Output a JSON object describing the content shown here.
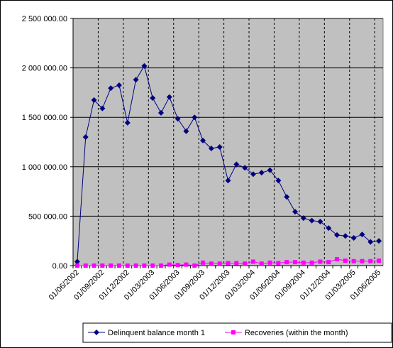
{
  "chart_data": {
    "type": "line",
    "categories": [
      "01/06/2002",
      null,
      null,
      "01/09/2002",
      null,
      null,
      "01/12/2002",
      null,
      null,
      "01/03/2003",
      null,
      null,
      "01/06/2003",
      null,
      null,
      "01/09/2003",
      null,
      null,
      "01/12/2003",
      null,
      null,
      "01/03/2004",
      null,
      null,
      "01/06/2004",
      null,
      null,
      "01/09/2004",
      null,
      null,
      "01/12/2004",
      null,
      null,
      "01/03/2005",
      null,
      null,
      "01/06/2005"
    ],
    "series": [
      {
        "name": "Delinquent balance month 1",
        "color": "#000080",
        "marker": "diamond",
        "values": [
          40000,
          1300000,
          1675000,
          1590000,
          1795000,
          1825000,
          1445000,
          1880000,
          2020000,
          1695000,
          1545000,
          1705000,
          1485000,
          1360000,
          1500000,
          1265000,
          1185000,
          1200000,
          860000,
          1025000,
          990000,
          925000,
          940000,
          965000,
          860000,
          695000,
          545000,
          480000,
          455000,
          445000,
          380000,
          310000,
          300000,
          280000,
          315000,
          240000,
          250000
        ]
      },
      {
        "name": "Recoveries (within the month)",
        "color": "#ff00ff",
        "marker": "square",
        "values": [
          0,
          0,
          0,
          0,
          0,
          0,
          0,
          0,
          0,
          0,
          0,
          10000,
          5000,
          10000,
          0,
          30000,
          20000,
          20000,
          25000,
          25000,
          20000,
          40000,
          20000,
          30000,
          25000,
          35000,
          35000,
          30000,
          30000,
          40000,
          35000,
          65000,
          50000,
          45000,
          45000,
          45000,
          50000
        ]
      }
    ],
    "ylim": [
      0,
      2500000
    ],
    "yticks": [
      {
        "value": 0,
        "label": "0.00"
      },
      {
        "value": 500000,
        "label": "500 000.00"
      },
      {
        "value": 1000000,
        "label": "1 000 000.00"
      },
      {
        "value": 1500000,
        "label": "1 500 000.00"
      },
      {
        "value": 2000000,
        "label": "2 000 000.00"
      },
      {
        "value": 2500000,
        "label": "2 500 000.00"
      }
    ],
    "grid": true,
    "legend": "bottom",
    "background": "#c0c0c0"
  }
}
